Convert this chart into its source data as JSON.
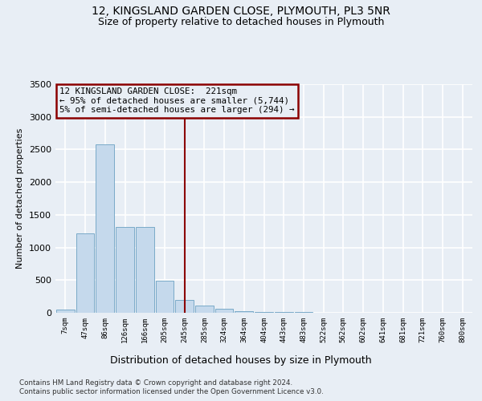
{
  "title1": "12, KINGSLAND GARDEN CLOSE, PLYMOUTH, PL3 5NR",
  "title2": "Size of property relative to detached houses in Plymouth",
  "xlabel": "Distribution of detached houses by size in Plymouth",
  "ylabel": "Number of detached properties",
  "bar_labels": [
    "7sqm",
    "47sqm",
    "86sqm",
    "126sqm",
    "166sqm",
    "205sqm",
    "245sqm",
    "285sqm",
    "324sqm",
    "364sqm",
    "404sqm",
    "443sqm",
    "483sqm",
    "522sqm",
    "562sqm",
    "602sqm",
    "641sqm",
    "681sqm",
    "721sqm",
    "760sqm",
    "800sqm"
  ],
  "bar_heights": [
    50,
    1220,
    2580,
    1310,
    1310,
    490,
    200,
    115,
    65,
    30,
    15,
    10,
    8,
    5,
    4,
    3,
    3,
    2,
    2,
    2,
    2
  ],
  "bar_color": "#c5d9ec",
  "bar_edge_color": "#7aaac8",
  "vline_x_idx": 6.0,
  "vline_color": "#8b0000",
  "annotation_line1": "12 KINGSLAND GARDEN CLOSE:  221sqm",
  "annotation_line2": "← 95% of detached houses are smaller (5,744)",
  "annotation_line3": "5% of semi-detached houses are larger (294) →",
  "ann_box_color": "#8b0000",
  "ylim_max": 3500,
  "yticks": [
    0,
    500,
    1000,
    1500,
    2000,
    2500,
    3000,
    3500
  ],
  "footnote1": "Contains HM Land Registry data © Crown copyright and database right 2024.",
  "footnote2": "Contains public sector information licensed under the Open Government Licence v3.0.",
  "background_color": "#e8eef5",
  "grid_color": "#ffffff",
  "title1_fontsize": 10,
  "title2_fontsize": 9
}
